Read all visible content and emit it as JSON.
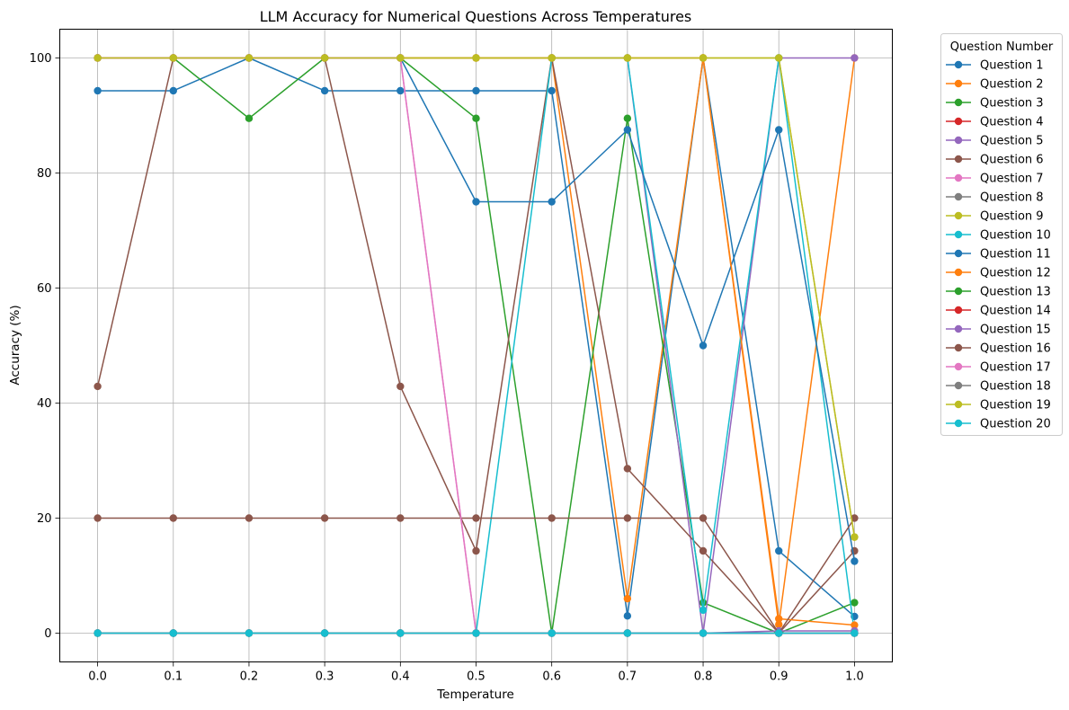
{
  "chart_data": {
    "type": "line",
    "title": "LLM Accuracy for Numerical Questions Across Temperatures",
    "xlabel": "Temperature",
    "ylabel": "Accuracy (%)",
    "x": [
      0.0,
      0.1,
      0.2,
      0.3,
      0.4,
      0.5,
      0.6,
      0.7,
      0.8,
      0.9,
      1.0
    ],
    "x_tick_labels": [
      "0.0",
      "0.1",
      "0.2",
      "0.3",
      "0.4",
      "0.5",
      "0.6",
      "0.7",
      "0.8",
      "0.9",
      "1.0"
    ],
    "y_ticks": [
      0,
      20,
      40,
      60,
      80,
      100
    ],
    "y_tick_labels": [
      "0",
      "20",
      "40",
      "60",
      "80",
      "100"
    ],
    "xlim": [
      -0.05,
      1.05
    ],
    "ylim": [
      -5,
      105
    ],
    "grid": true,
    "legend_title": "Question Number",
    "legend_placement": "outside-upper-right",
    "series": [
      {
        "name": "Question 1",
        "color": "#1f77b4",
        "values": [
          94.3,
          94.3,
          100,
          94.3,
          94.3,
          94.3,
          94.3,
          3,
          100,
          14.3,
          2.9
        ]
      },
      {
        "name": "Question 2",
        "color": "#ff7f0e",
        "values": [
          100,
          100,
          100,
          100,
          100,
          100,
          100,
          6,
          100,
          1.5,
          100
        ]
      },
      {
        "name": "Question 3",
        "color": "#2ca02c",
        "values": [
          100,
          100,
          89.5,
          100,
          100,
          89.5,
          0,
          89.5,
          5.3,
          0,
          5.3
        ]
      },
      {
        "name": "Question 4",
        "color": "#d62728",
        "values": [
          0,
          0,
          0,
          0,
          0,
          0,
          0,
          0,
          0,
          0,
          0
        ]
      },
      {
        "name": "Question 5",
        "color": "#9467bd",
        "values": [
          100,
          100,
          100,
          100,
          100,
          100,
          100,
          100,
          0,
          100,
          100
        ]
      },
      {
        "name": "Question 6",
        "color": "#8c564b",
        "values": [
          42.9,
          100,
          100,
          100,
          42.9,
          14.3,
          100,
          28.6,
          14.3,
          0,
          14.3
        ]
      },
      {
        "name": "Question 7",
        "color": "#e377c2",
        "values": [
          100,
          100,
          100,
          100,
          100,
          0,
          0,
          0,
          0,
          0,
          0
        ]
      },
      {
        "name": "Question 8",
        "color": "#7f7f7f",
        "values": [
          0,
          0,
          0,
          0,
          0,
          0,
          0,
          0,
          0,
          0,
          0
        ]
      },
      {
        "name": "Question 9",
        "color": "#bcbd22",
        "values": [
          100,
          100,
          100,
          100,
          100,
          100,
          100,
          100,
          100,
          100,
          16.7
        ]
      },
      {
        "name": "Question 10",
        "color": "#17becf",
        "values": [
          0,
          0,
          0,
          0,
          0,
          0,
          100,
          100,
          4,
          100,
          0
        ]
      },
      {
        "name": "Question 11",
        "color": "#1f77b4",
        "values": [
          100,
          100,
          100,
          100,
          100,
          75,
          75,
          87.5,
          50,
          87.5,
          12.5
        ]
      },
      {
        "name": "Question 12",
        "color": "#ff7f0e",
        "values": [
          100,
          100,
          100,
          100,
          100,
          100,
          100,
          100,
          100,
          2.5,
          1.4
        ]
      },
      {
        "name": "Question 13",
        "color": "#2ca02c",
        "values": [
          0,
          0,
          0,
          0,
          0,
          0,
          0,
          0,
          0,
          0,
          0
        ]
      },
      {
        "name": "Question 14",
        "color": "#d62728",
        "values": [
          0,
          0,
          0,
          0,
          0,
          0,
          0,
          0,
          0,
          0,
          0
        ]
      },
      {
        "name": "Question 15",
        "color": "#9467bd",
        "values": [
          0,
          0,
          0,
          0,
          0,
          0,
          0,
          0,
          0,
          0.4,
          0.4
        ]
      },
      {
        "name": "Question 16",
        "color": "#8c564b",
        "values": [
          20,
          20,
          20,
          20,
          20,
          20,
          20,
          20,
          20,
          0,
          20
        ]
      },
      {
        "name": "Question 17",
        "color": "#e377c2",
        "values": [
          100,
          100,
          100,
          100,
          100,
          0,
          0,
          0,
          0,
          0,
          0
        ]
      },
      {
        "name": "Question 18",
        "color": "#7f7f7f",
        "values": [
          0,
          0,
          0,
          0,
          0,
          0,
          0,
          0,
          0,
          0,
          0
        ]
      },
      {
        "name": "Question 19",
        "color": "#bcbd22",
        "values": [
          100,
          100,
          100,
          100,
          100,
          100,
          100,
          100,
          100,
          100,
          16.7
        ]
      },
      {
        "name": "Question 20",
        "color": "#17becf",
        "values": [
          0,
          0,
          0,
          0,
          0,
          0,
          0,
          0,
          0,
          0,
          0
        ]
      }
    ]
  }
}
